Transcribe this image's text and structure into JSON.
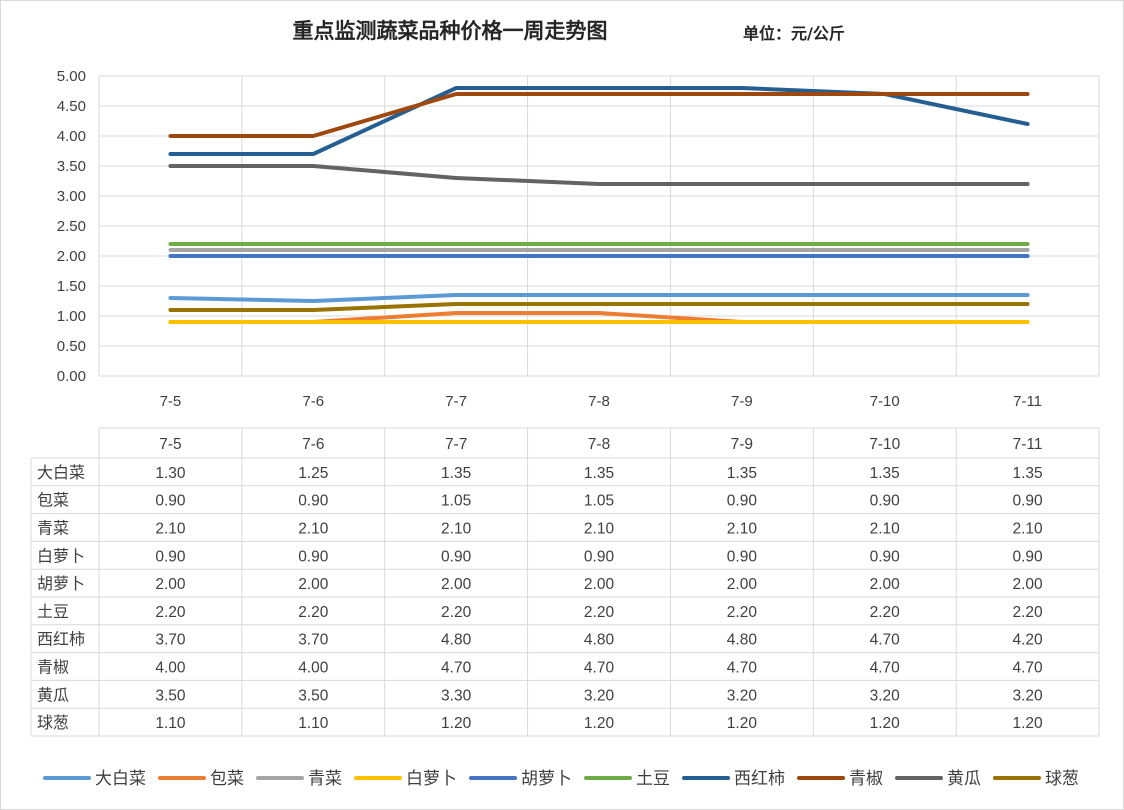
{
  "title": "重点监测蔬菜品种价格一周走势图",
  "unit": "单位：元/公斤",
  "chart_data": {
    "type": "line",
    "title": "重点监测蔬菜品种价格一周走势图",
    "unit_label": "单位：元/公斤",
    "categories": [
      "7-5",
      "7-6",
      "7-7",
      "7-8",
      "7-9",
      "7-10",
      "7-11"
    ],
    "ylim": [
      0,
      5
    ],
    "yticks": [
      "0.00",
      "0.50",
      "1.00",
      "1.50",
      "2.00",
      "2.50",
      "3.00",
      "3.50",
      "4.00",
      "4.50",
      "5.00"
    ],
    "grid": true,
    "legend_position": "bottom",
    "data_table": true,
    "series": [
      {
        "name": "大白菜",
        "color": "#5B9BD5",
        "values": [
          1.3,
          1.25,
          1.35,
          1.35,
          1.35,
          1.35,
          1.35
        ],
        "labels": [
          "1.30",
          "1.25",
          "1.35",
          "1.35",
          "1.35",
          "1.35",
          "1.35"
        ]
      },
      {
        "name": "包菜",
        "color": "#ED7D31",
        "values": [
          0.9,
          0.9,
          1.05,
          1.05,
          0.9,
          0.9,
          0.9
        ],
        "labels": [
          "0.90",
          "0.90",
          "1.05",
          "1.05",
          "0.90",
          "0.90",
          "0.90"
        ]
      },
      {
        "name": "青菜",
        "color": "#A5A5A5",
        "values": [
          2.1,
          2.1,
          2.1,
          2.1,
          2.1,
          2.1,
          2.1
        ],
        "labels": [
          "2.10",
          "2.10",
          "2.10",
          "2.10",
          "2.10",
          "2.10",
          "2.10"
        ]
      },
      {
        "name": "白萝卜",
        "color": "#FFC000",
        "values": [
          0.9,
          0.9,
          0.9,
          0.9,
          0.9,
          0.9,
          0.9
        ],
        "labels": [
          "0.90",
          "0.90",
          "0.90",
          "0.90",
          "0.90",
          "0.90",
          "0.90"
        ]
      },
      {
        "name": "胡萝卜",
        "color": "#4472C4",
        "values": [
          2.0,
          2.0,
          2.0,
          2.0,
          2.0,
          2.0,
          2.0
        ],
        "labels": [
          "2.00",
          "2.00",
          "2.00",
          "2.00",
          "2.00",
          "2.00",
          "2.00"
        ]
      },
      {
        "name": "土豆",
        "color": "#70AD47",
        "values": [
          2.2,
          2.2,
          2.2,
          2.2,
          2.2,
          2.2,
          2.2
        ],
        "labels": [
          "2.20",
          "2.20",
          "2.20",
          "2.20",
          "2.20",
          "2.20",
          "2.20"
        ]
      },
      {
        "name": "西红柿",
        "color": "#255E91",
        "values": [
          3.7,
          3.7,
          4.8,
          4.8,
          4.8,
          4.7,
          4.2
        ],
        "labels": [
          "3.70",
          "3.70",
          "4.80",
          "4.80",
          "4.80",
          "4.70",
          "4.20"
        ]
      },
      {
        "name": "青椒",
        "color": "#9E480E",
        "values": [
          4.0,
          4.0,
          4.7,
          4.7,
          4.7,
          4.7,
          4.7
        ],
        "labels": [
          "4.00",
          "4.00",
          "4.70",
          "4.70",
          "4.70",
          "4.70",
          "4.70"
        ]
      },
      {
        "name": "黄瓜",
        "color": "#636363",
        "values": [
          3.5,
          3.5,
          3.3,
          3.2,
          3.2,
          3.2,
          3.2
        ],
        "labels": [
          "3.50",
          "3.50",
          "3.30",
          "3.20",
          "3.20",
          "3.20",
          "3.20"
        ]
      },
      {
        "name": "球葱",
        "color": "#997300",
        "values": [
          1.1,
          1.1,
          1.2,
          1.2,
          1.2,
          1.2,
          1.2
        ],
        "labels": [
          "1.10",
          "1.10",
          "1.20",
          "1.20",
          "1.20",
          "1.20",
          "1.20"
        ]
      }
    ]
  }
}
